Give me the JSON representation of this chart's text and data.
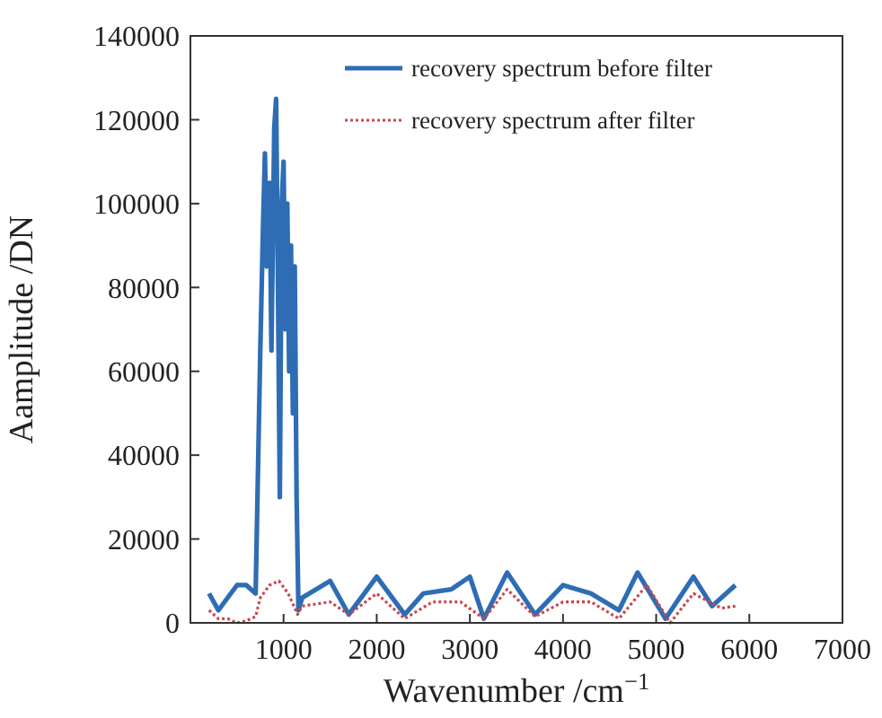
{
  "chart_data": {
    "type": "line",
    "xlabel": "Wavenumber /cm$^{−1}$",
    "ylabel": "Aamplitude /DN",
    "xlim": [
      0,
      7000
    ],
    "ylim": [
      0,
      140000
    ],
    "xticks": [
      1000,
      2000,
      3000,
      4000,
      5000,
      6000,
      7000
    ],
    "yticks": [
      0,
      20000,
      40000,
      60000,
      80000,
      100000,
      120000,
      140000
    ],
    "legend": "top right",
    "grid": false,
    "series": [
      {
        "name": "recovery spectrum before filter",
        "color": "#2e6db4",
        "line_style": "solid",
        "x": [
          200,
          300,
          400,
          500,
          600,
          700,
          720,
          750,
          780,
          800,
          820,
          850,
          870,
          900,
          920,
          940,
          960,
          980,
          1000,
          1020,
          1040,
          1060,
          1080,
          1100,
          1120,
          1140,
          1160,
          1200,
          1500,
          1700,
          2000,
          2300,
          2500,
          2800,
          3000,
          3150,
          3400,
          3700,
          4000,
          4300,
          4600,
          4800,
          5100,
          5400,
          5600,
          5850
        ],
        "values": [
          7000,
          3000,
          6000,
          9000,
          9000,
          7000,
          30000,
          65000,
          95000,
          112000,
          85000,
          105000,
          65000,
          118000,
          125000,
          80000,
          30000,
          100000,
          110000,
          70000,
          100000,
          60000,
          90000,
          50000,
          85000,
          30000,
          3000,
          6000,
          10000,
          2000,
          11000,
          2000,
          7000,
          8000,
          11000,
          1000,
          12000,
          2000,
          9000,
          7000,
          3000,
          12000,
          1000,
          11000,
          4000,
          9000
        ]
      },
      {
        "name": "recovery spectrum after filter",
        "color": "#c9484e",
        "line_style": "dotted",
        "x": [
          200,
          300,
          400,
          500,
          600,
          700,
          750,
          850,
          950,
          1050,
          1150,
          1200,
          1500,
          1700,
          2000,
          2300,
          2600,
          2900,
          3150,
          3400,
          3700,
          4000,
          4300,
          4600,
          4900,
          5150,
          5400,
          5700,
          5850
        ],
        "values": [
          3000,
          1000,
          1000,
          0,
          500,
          1500,
          6000,
          9000,
          10000,
          7000,
          2000,
          4000,
          5000,
          2000,
          7000,
          1000,
          5000,
          5000,
          1000,
          8000,
          1500,
          5000,
          5000,
          1000,
          9000,
          0,
          7000,
          3500,
          4000
        ]
      }
    ]
  }
}
